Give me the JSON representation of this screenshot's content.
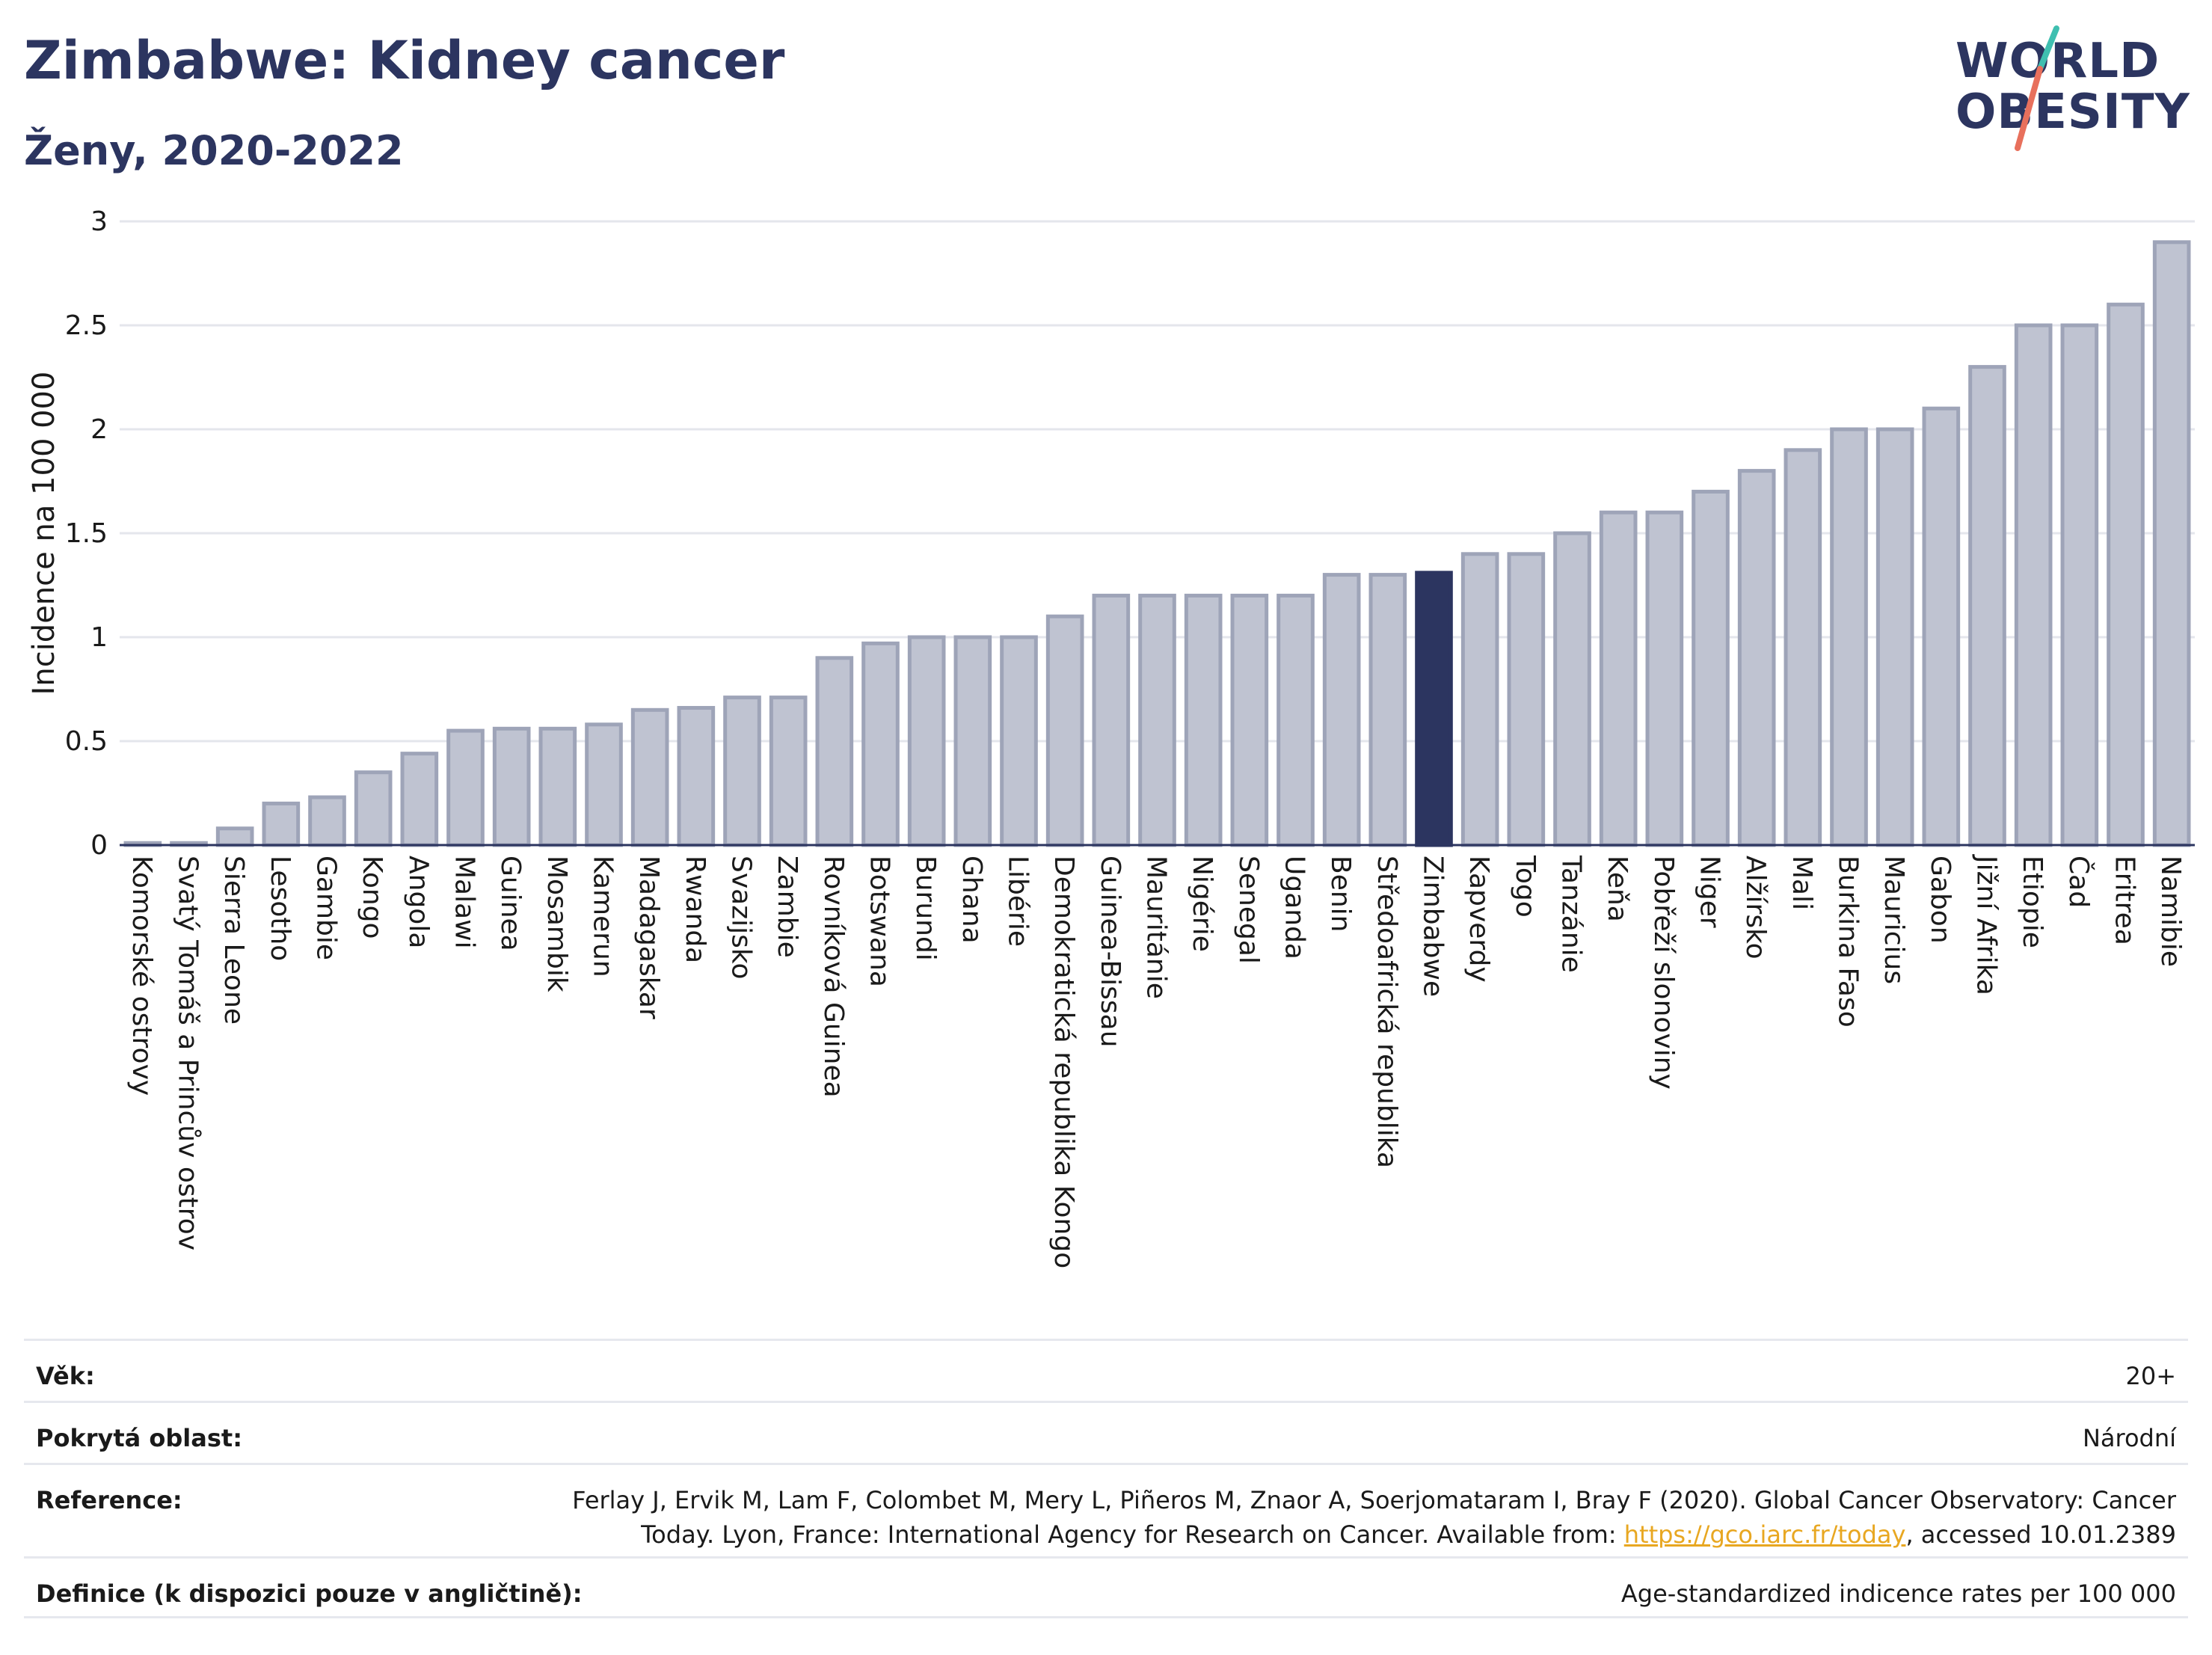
{
  "header": {
    "title": "Zimbabwe: Kidney cancer",
    "subtitle": "Ženy, 2020-2022",
    "logo": {
      "line1": "WORLD",
      "line2": "OBESITY",
      "accent_colors": [
        "#3fbfb0",
        "#e8705c"
      ]
    }
  },
  "chart_data": {
    "type": "bar",
    "title": "Zimbabwe: Kidney cancer",
    "subtitle": "Ženy, 2020-2022",
    "ylabel": "Incidence na 100 000",
    "xlabel": "",
    "ylim": [
      0,
      3
    ],
    "yticks": [
      0,
      0.5,
      1,
      1.5,
      2,
      2.5,
      3
    ],
    "ytick_labels": [
      "0",
      "0.5",
      "1",
      "1.5",
      "2",
      "2.5",
      "3"
    ],
    "grid": true,
    "highlight": "Zimbabwe",
    "colors": {
      "bar": "#bfc3d1",
      "bar_border": "#9ea4b8",
      "highlight": "#2c3560"
    },
    "categories": [
      "Komorské ostrovy",
      "Svatý Tomáš a Princův ostrov",
      "Sierra Leone",
      "Lesotho",
      "Gambie",
      "Kongo",
      "Angola",
      "Malawi",
      "Guinea",
      "Mosambik",
      "Kamerun",
      "Madagaskar",
      "Rwanda",
      "Svazijsko",
      "Zambie",
      "Rovníková Guinea",
      "Botswana",
      "Burundi",
      "Ghana",
      "Libérie",
      "Demokratická republika Kongo",
      "Guinea-Bissau",
      "Mauritánie",
      "Nigérie",
      "Senegal",
      "Uganda",
      "Benin",
      "Středoafrická republika",
      "Zimbabwe",
      "Kapverdy",
      "Togo",
      "Tanzánie",
      "Keňa",
      "Pobřeží slonoviny",
      "Niger",
      "Alžírsko",
      "Mali",
      "Burkina Faso",
      "Mauricius",
      "Gabon",
      "Jižní Afrika",
      "Etiopie",
      "Čad",
      "Eritrea",
      "Namibie"
    ],
    "values": [
      0.01,
      0.01,
      0.08,
      0.2,
      0.23,
      0.35,
      0.44,
      0.55,
      0.56,
      0.56,
      0.58,
      0.65,
      0.66,
      0.71,
      0.71,
      0.9,
      0.97,
      1.0,
      1.0,
      1.0,
      1.1,
      1.2,
      1.2,
      1.2,
      1.2,
      1.2,
      1.3,
      1.3,
      1.31,
      1.4,
      1.4,
      1.5,
      1.6,
      1.6,
      1.7,
      1.8,
      1.9,
      2.0,
      2.0,
      2.1,
      2.3,
      2.5,
      2.5,
      2.6,
      2.9
    ]
  },
  "meta": [
    {
      "label": "Věk:",
      "value": "20+"
    },
    {
      "label": "Pokrytá oblast:",
      "value": "Národní"
    },
    {
      "label": "Reference:",
      "value_before": "Ferlay J, Ervik M, Lam F, Colombet M, Mery L, Piñeros M, Znaor A, Soerjomataram I, Bray F (2020). Global Cancer Observatory: Cancer Today. Lyon, France: International Agency for Research on Cancer. Available from: ",
      "link": "https://gco.iarc.fr/today",
      "value_after": ", accessed 10.01.2389"
    },
    {
      "label": "Definice (k dispozici pouze v angličtině):",
      "value": "Age-standardized indicence rates per 100 000"
    }
  ]
}
